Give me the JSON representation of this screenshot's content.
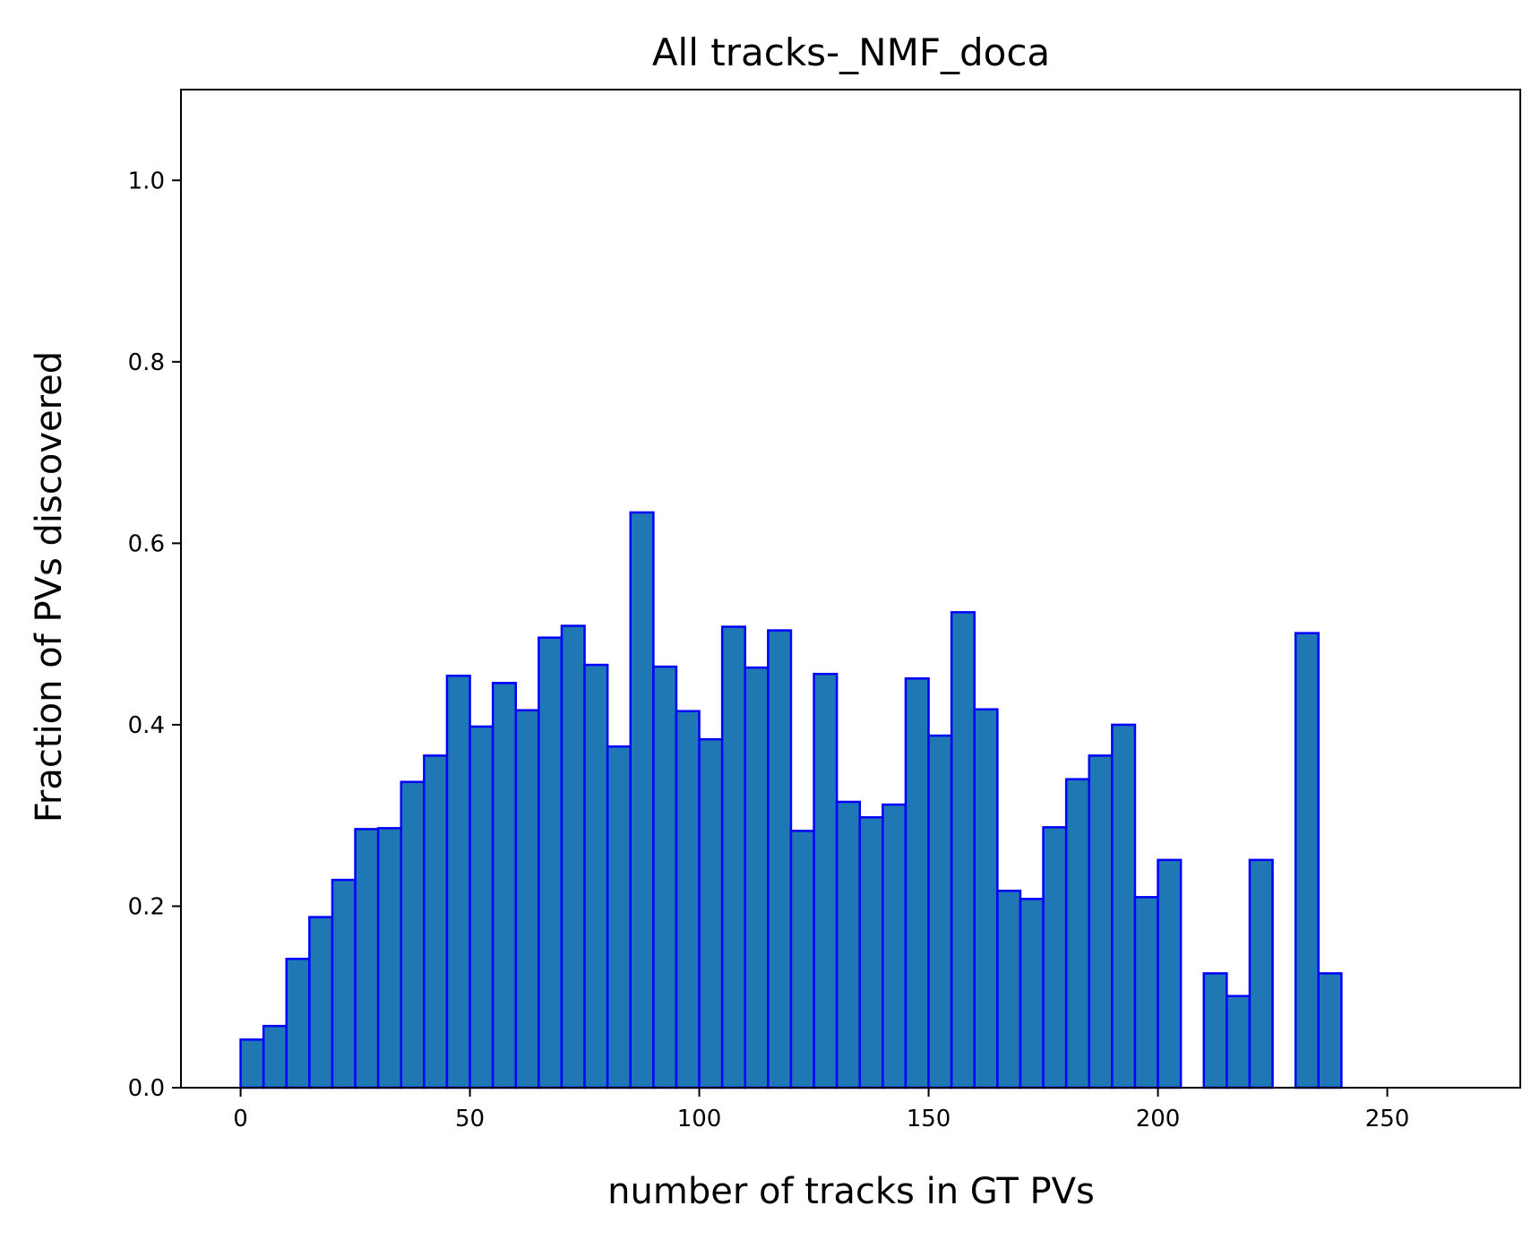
{
  "chart_data": {
    "type": "bar",
    "title": "All tracks-_NMF_doca",
    "xlabel": "number of tracks in GT PVs",
    "ylabel": "Fraction of PVs discovered",
    "xlim": [
      -13,
      279
    ],
    "ylim": [
      0,
      1.1
    ],
    "bin_width": 5,
    "xticks": [
      0,
      50,
      100,
      150,
      200,
      250
    ],
    "xtick_labels": [
      "0",
      "50",
      "100",
      "150",
      "200",
      "250"
    ],
    "yticks": [
      0.0,
      0.2,
      0.4,
      0.6,
      0.8,
      1.0
    ],
    "ytick_labels": [
      "0.0",
      "0.2",
      "0.4",
      "0.6",
      "0.8",
      "1.0"
    ],
    "grid": false,
    "bins": [
      0,
      5,
      10,
      15,
      20,
      25,
      30,
      35,
      40,
      45,
      50,
      55,
      60,
      65,
      70,
      75,
      80,
      85,
      90,
      95,
      100,
      105,
      110,
      115,
      120,
      125,
      130,
      135,
      140,
      145,
      150,
      155,
      160,
      165,
      170,
      175,
      180,
      185,
      190,
      195,
      200,
      205,
      210,
      215,
      220,
      225,
      230,
      235,
      240,
      245,
      250,
      255,
      260
    ],
    "values": [
      0.053,
      0.068,
      0.142,
      0.188,
      0.229,
      0.285,
      0.286,
      0.337,
      0.366,
      0.454,
      0.398,
      0.446,
      0.416,
      0.496,
      0.509,
      0.466,
      0.376,
      0.634,
      0.464,
      0.415,
      0.384,
      0.508,
      0.463,
      0.504,
      0.283,
      0.456,
      0.315,
      0.298,
      0.312,
      0.451,
      0.388,
      0.524,
      0.417,
      0.217,
      0.208,
      0.287,
      0.34,
      0.366,
      0.4,
      0.21,
      0.251,
      0.0,
      0.126,
      0.101,
      0.251,
      0.0,
      0.501,
      0.126,
      0.0,
      0.0,
      0.0,
      0.0,
      0.0
    ],
    "colors": {
      "bar_fill": "#1f77b4",
      "bar_edge": "#0000ff",
      "axes": "#000000"
    }
  }
}
